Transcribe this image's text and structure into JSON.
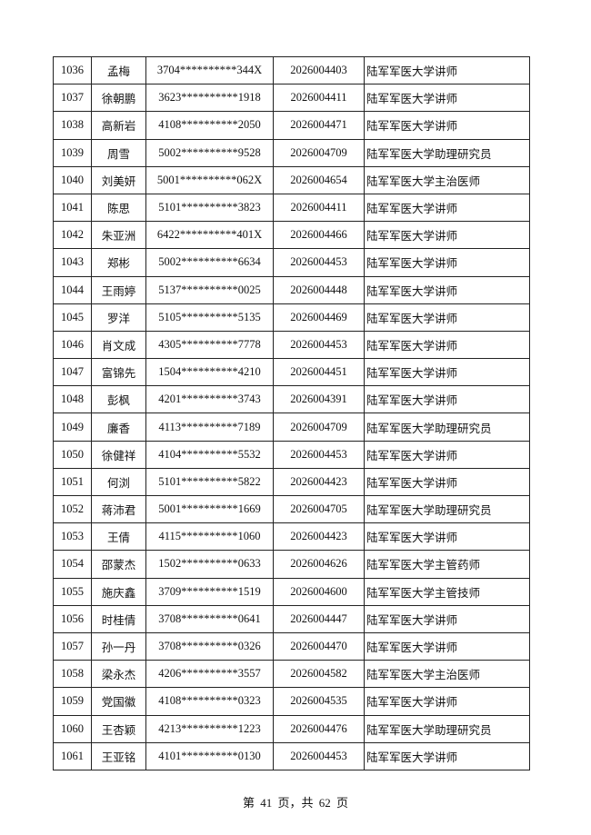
{
  "rows": [
    [
      "1036",
      "孟梅",
      "3704**********344X",
      "2026004403",
      "陆军军医大学讲师"
    ],
    [
      "1037",
      "徐朝鹏",
      "3623**********1918",
      "2026004411",
      "陆军军医大学讲师"
    ],
    [
      "1038",
      "高新岩",
      "4108**********2050",
      "2026004471",
      "陆军军医大学讲师"
    ],
    [
      "1039",
      "周雪",
      "5002**********9528",
      "2026004709",
      "陆军军医大学助理研究员"
    ],
    [
      "1040",
      "刘美妍",
      "5001**********062X",
      "2026004654",
      "陆军军医大学主治医师"
    ],
    [
      "1041",
      "陈思",
      "5101**********3823",
      "2026004411",
      "陆军军医大学讲师"
    ],
    [
      "1042",
      "朱亚洲",
      "6422**********401X",
      "2026004466",
      "陆军军医大学讲师"
    ],
    [
      "1043",
      "郑彬",
      "5002**********6634",
      "2026004453",
      "陆军军医大学讲师"
    ],
    [
      "1044",
      "王雨婷",
      "5137**********0025",
      "2026004448",
      "陆军军医大学讲师"
    ],
    [
      "1045",
      "罗洋",
      "5105**********5135",
      "2026004469",
      "陆军军医大学讲师"
    ],
    [
      "1046",
      "肖文成",
      "4305**********7778",
      "2026004453",
      "陆军军医大学讲师"
    ],
    [
      "1047",
      "富锦先",
      "1504**********4210",
      "2026004451",
      "陆军军医大学讲师"
    ],
    [
      "1048",
      "彭枫",
      "4201**********3743",
      "2026004391",
      "陆军军医大学讲师"
    ],
    [
      "1049",
      "廉香",
      "4113**********7189",
      "2026004709",
      "陆军军医大学助理研究员"
    ],
    [
      "1050",
      "徐健祥",
      "4104**********5532",
      "2026004453",
      "陆军军医大学讲师"
    ],
    [
      "1051",
      "何浏",
      "5101**********5822",
      "2026004423",
      "陆军军医大学讲师"
    ],
    [
      "1052",
      "蒋沛君",
      "5001**********1669",
      "2026004705",
      "陆军军医大学助理研究员"
    ],
    [
      "1053",
      "王倩",
      "4115**********1060",
      "2026004423",
      "陆军军医大学讲师"
    ],
    [
      "1054",
      "邵蒙杰",
      "1502**********0633",
      "2026004626",
      "陆军军医大学主管药师"
    ],
    [
      "1055",
      "施庆鑫",
      "3709**********1519",
      "2026004600",
      "陆军军医大学主管技师"
    ],
    [
      "1056",
      "时桂倩",
      "3708**********0641",
      "2026004447",
      "陆军军医大学讲师"
    ],
    [
      "1057",
      "孙一丹",
      "3708**********0326",
      "2026004470",
      "陆军军医大学讲师"
    ],
    [
      "1058",
      "梁永杰",
      "4206**********3557",
      "2026004582",
      "陆军军医大学主治医师"
    ],
    [
      "1059",
      "党国徽",
      "4108**********0323",
      "2026004535",
      "陆军军医大学讲师"
    ],
    [
      "1060",
      "王杏颖",
      "4213**********1223",
      "2026004476",
      "陆军军医大学助理研究员"
    ],
    [
      "1061",
      "王亚铭",
      "4101**********0130",
      "2026004453",
      "陆军军医大学讲师"
    ]
  ],
  "footer": "第 41 页，共 62 页"
}
